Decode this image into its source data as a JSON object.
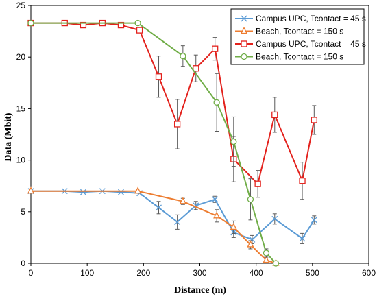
{
  "chart_data": {
    "type": "line",
    "title": "",
    "xlabel": "Distance (m)",
    "ylabel": "Data (Mbit)",
    "xlim": [
      0,
      600
    ],
    "ylim": [
      0,
      25
    ],
    "xticks": [
      "0",
      "100",
      "200",
      "300",
      "400",
      "500",
      "600"
    ],
    "yticks": [
      "0",
      "5",
      "10",
      "15",
      "20",
      "25"
    ],
    "grid": false,
    "legend_position": "top-right",
    "series": [
      {
        "name": "Campus UPC, Tcontact = 45 s",
        "color": "#5B9BD5",
        "marker": "x",
        "x": [
          0,
          60,
          93,
          127,
          160,
          193,
          227,
          260,
          293,
          327,
          360,
          393,
          433,
          482,
          503
        ],
        "y": [
          7.0,
          7.0,
          6.9,
          7.0,
          6.9,
          6.8,
          5.4,
          4.0,
          5.6,
          6.2,
          3.0,
          2.3,
          4.3,
          2.4,
          4.2
        ],
        "err": [
          0,
          0,
          0,
          0,
          0,
          0,
          0.6,
          0.7,
          0.4,
          0.3,
          0.5,
          0.4,
          0.5,
          0.5,
          0.4
        ]
      },
      {
        "name": "Beach, Tcontact = 150 s",
        "color": "#ED7D31",
        "marker": "triangle",
        "x": [
          0,
          190,
          270,
          330,
          360,
          390,
          418,
          435
        ],
        "y": [
          7.0,
          7.0,
          6.0,
          4.6,
          3.5,
          1.8,
          0.3,
          0.0
        ],
        "err": [
          0,
          0,
          0.3,
          0.6,
          0.6,
          0.4,
          0.2,
          0
        ]
      },
      {
        "name": "Campus UPC, Tcontact = 45 s",
        "color": "#E3211C",
        "marker": "square",
        "x": [
          0,
          60,
          93,
          127,
          160,
          193,
          227,
          260,
          293,
          327,
          360,
          403,
          433,
          482,
          503
        ],
        "y": [
          23.3,
          23.3,
          23.1,
          23.3,
          23.1,
          22.6,
          18.1,
          13.5,
          18.9,
          20.8,
          10.1,
          7.7,
          14.4,
          8.0,
          13.9
        ],
        "err": [
          0,
          0,
          0,
          0,
          0,
          0,
          2.0,
          2.4,
          1.3,
          1.1,
          2.2,
          1.3,
          1.7,
          1.8,
          1.4
        ]
      },
      {
        "name": "Beach, Tcontact = 150 s",
        "color": "#70AD47",
        "marker": "circle",
        "x": [
          0,
          190,
          270,
          330,
          360,
          390,
          418,
          435
        ],
        "y": [
          23.3,
          23.3,
          20.1,
          15.6,
          11.8,
          6.2,
          1.0,
          0.0
        ],
        "err": [
          0,
          0,
          1.0,
          2.8,
          2.4,
          2.0,
          0.4,
          0
        ]
      }
    ]
  }
}
